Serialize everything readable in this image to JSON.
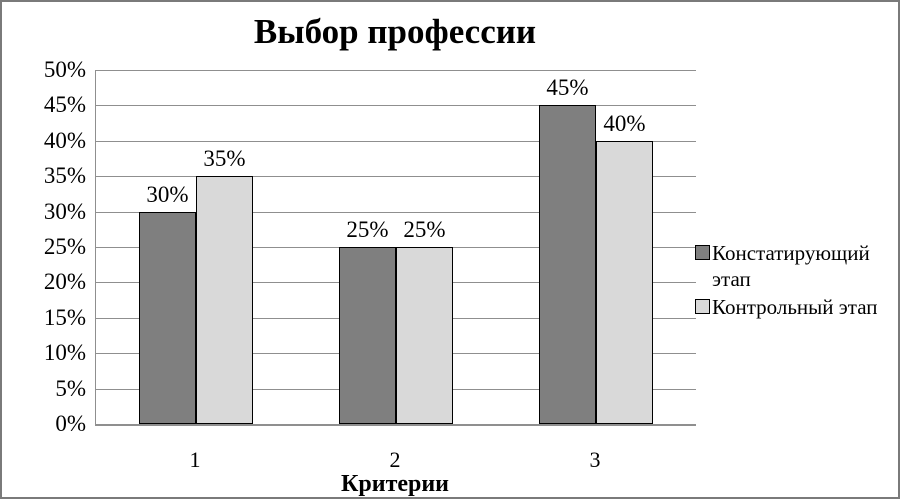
{
  "window": {
    "background": "#ffffff",
    "border_color": "#7a7a7a"
  },
  "chart_data": {
    "type": "bar",
    "title": "Выбор профессии",
    "xlabel": "Критерии",
    "ylabel": "",
    "categories": [
      "1",
      "2",
      "3"
    ],
    "series": [
      {
        "name": "Констатирующий этап",
        "color": "#7f7f7f",
        "values": [
          30,
          25,
          45
        ],
        "labels": [
          "30%",
          "25%",
          "45%"
        ]
      },
      {
        "name": "Контрольный этап",
        "color": "#d9d9d9",
        "values": [
          35,
          25,
          40
        ],
        "labels": [
          "35%",
          "25%",
          "40%"
        ]
      }
    ],
    "ylim": [
      0,
      50
    ],
    "ytick_step": 5,
    "ytick_labels": [
      "0%",
      "5%",
      "10%",
      "15%",
      "20%",
      "25%",
      "30%",
      "35%",
      "40%",
      "45%",
      "50%"
    ],
    "grid": true,
    "gridline_color": "#8f8f8f",
    "axis_color": "#8f8f8f",
    "bar_border_color": "#000000",
    "legend_position": "right",
    "legend": [
      {
        "label": "Констатирующий этап",
        "swatch_color": "#7f7f7f"
      },
      {
        "label": "Контрольный этап",
        "swatch_color": "#d9d9d9"
      }
    ]
  }
}
